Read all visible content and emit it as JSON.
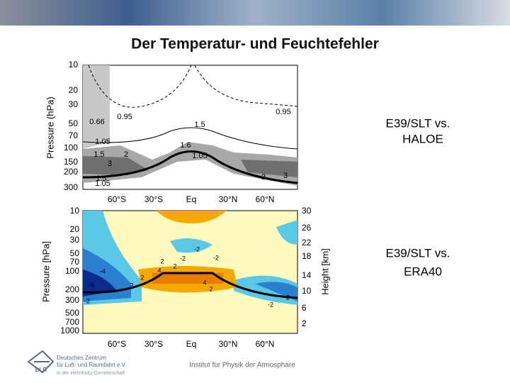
{
  "title": "Der Temperatur- und Feuchtefehler",
  "plot1": {
    "y_label": "Pressure (hPa)",
    "y_ticks": [
      10,
      20,
      30,
      50,
      70,
      100,
      150,
      200,
      300
    ],
    "x_ticks": [
      "60°S",
      "30°S",
      "Eq",
      "30°N",
      "60°N"
    ],
    "contour_labels": [
      "0.66",
      "0.95",
      "0.95",
      "1.5",
      "1.05",
      "1.5",
      "2",
      "3",
      "1.6",
      "1.05",
      "2",
      "3",
      "1.05",
      "1.5"
    ],
    "caption": [
      "E39/SLT vs.",
      "HALOE"
    ]
  },
  "plot2": {
    "y_label": "Pressure [hPa]",
    "y_ticks": [
      10,
      20,
      30,
      50,
      70,
      100,
      200,
      300,
      500,
      700,
      1000
    ],
    "y2_label": "Height [km]",
    "y2_ticks": [
      30,
      26,
      22,
      18,
      14,
      10,
      6,
      2
    ],
    "x_ticks": [
      "60°S",
      "30°S",
      "Eq",
      "30°N",
      "60°N"
    ],
    "contour_labels": [
      "-2",
      "-2",
      "-2",
      "2",
      "-4",
      "4",
      "2",
      "2",
      "4",
      "2",
      "-6",
      "-2",
      "2",
      "-2",
      "-2"
    ],
    "caption": [
      "E39/SLT vs.",
      "ERA40"
    ]
  },
  "footer": {
    "org": [
      "Deutsches Zentrum",
      "für Luft- und Raumfahrt e.V.",
      "in der Helmholtz-Gemeinschaft"
    ],
    "org_short": "DLR",
    "institute": "Institut für Physik der Atmosphäre"
  }
}
